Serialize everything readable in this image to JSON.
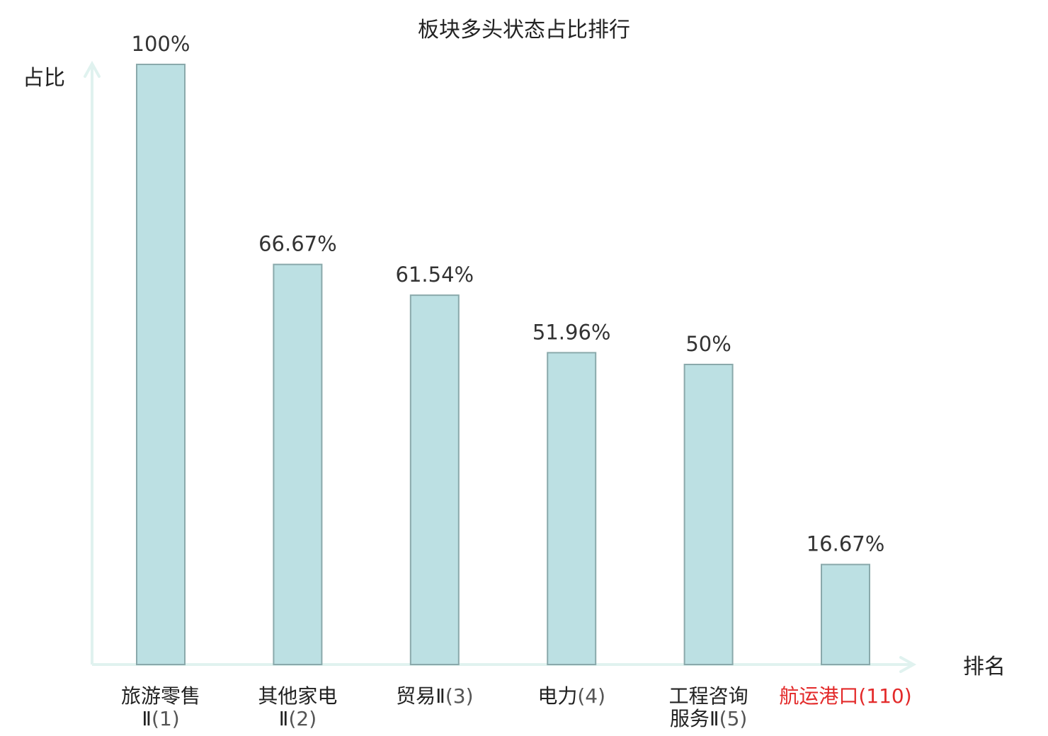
{
  "chart_data": {
    "type": "bar",
    "title": "板块多头状态占比排行",
    "ylabel": "占比",
    "xlabel": "排名",
    "ylim": [
      0,
      100
    ],
    "grid": false,
    "legend": "none",
    "categories": [
      {
        "lines": [
          {
            "name": "旅游零售"
          },
          {
            "name": "Ⅱ",
            "num": "(1)"
          }
        ]
      },
      {
        "lines": [
          {
            "name": "其他家电"
          },
          {
            "name": "Ⅱ",
            "num": "(2)"
          }
        ]
      },
      {
        "lines": [
          {
            "name": "贸易Ⅱ",
            "num": "(3)"
          }
        ]
      },
      {
        "lines": [
          {
            "name": "电力",
            "num": "(4)"
          }
        ]
      },
      {
        "lines": [
          {
            "name": "工程咨询"
          },
          {
            "name": "服务Ⅱ",
            "num": "(5)"
          }
        ]
      },
      {
        "lines": [
          {
            "name": "航运港口",
            "num": "(110)"
          }
        ],
        "highlight": true
      }
    ],
    "values": [
      100,
      66.67,
      61.54,
      51.96,
      50,
      16.67
    ],
    "value_labels": [
      "100%",
      "66.67%",
      "61.54%",
      "51.96%",
      "50%",
      "16.67%"
    ],
    "colors": {
      "bar_fill": "#bce0e3",
      "bar_stroke": "#8aa9ab",
      "axis": "#e0f2ef",
      "highlight_label": "#e32a2a"
    }
  }
}
